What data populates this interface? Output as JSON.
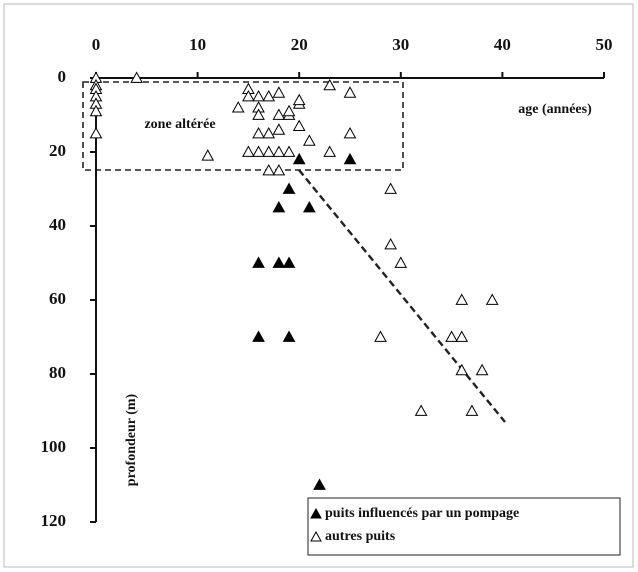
{
  "chart_data": {
    "type": "scatter",
    "xlabel": "age (années)",
    "ylabel": "profondeur (m)",
    "annotation": "zone altérée",
    "xlim": [
      0,
      50
    ],
    "xticks": [
      0,
      10,
      20,
      30,
      40,
      50
    ],
    "ylim": [
      0,
      120
    ],
    "yticks": [
      0,
      20,
      40,
      60,
      80,
      100,
      120
    ],
    "y_inverted": true,
    "x_axis_position": "top",
    "legend": "bottom-right",
    "series": [
      {
        "name": "puits influencés par un pompage",
        "color": "#000000",
        "marker": "filled",
        "x": [
          20,
          25,
          19,
          18,
          21,
          16,
          18,
          19,
          16,
          19,
          22
        ],
        "values": [
          22,
          22,
          30,
          35,
          35,
          50,
          50,
          50,
          70,
          70,
          110
        ]
      },
      {
        "name": "autres puits",
        "color": "#000000",
        "marker": "open",
        "x": [
          0,
          0,
          0,
          0,
          0,
          0,
          0,
          4,
          25,
          23,
          15,
          15,
          14,
          17,
          16,
          18,
          16,
          16,
          18,
          19,
          19,
          20,
          20,
          20,
          18,
          17,
          16,
          21,
          25,
          11,
          15,
          16,
          17,
          18,
          19,
          23,
          17,
          18,
          29,
          29,
          30,
          39,
          36,
          28,
          35,
          36,
          36,
          38,
          32,
          37
        ],
        "values": [
          0,
          2,
          3,
          5,
          7,
          9,
          15,
          0,
          4,
          2,
          3,
          5,
          8,
          5,
          5,
          4,
          8,
          10,
          10,
          10,
          9,
          7,
          6,
          13,
          14,
          15,
          15,
          17,
          15,
          21,
          20,
          20,
          20,
          20,
          20,
          20,
          25,
          25,
          30,
          45,
          50,
          60,
          60,
          70,
          70,
          70,
          79,
          79,
          90,
          90
        ]
      }
    ]
  }
}
